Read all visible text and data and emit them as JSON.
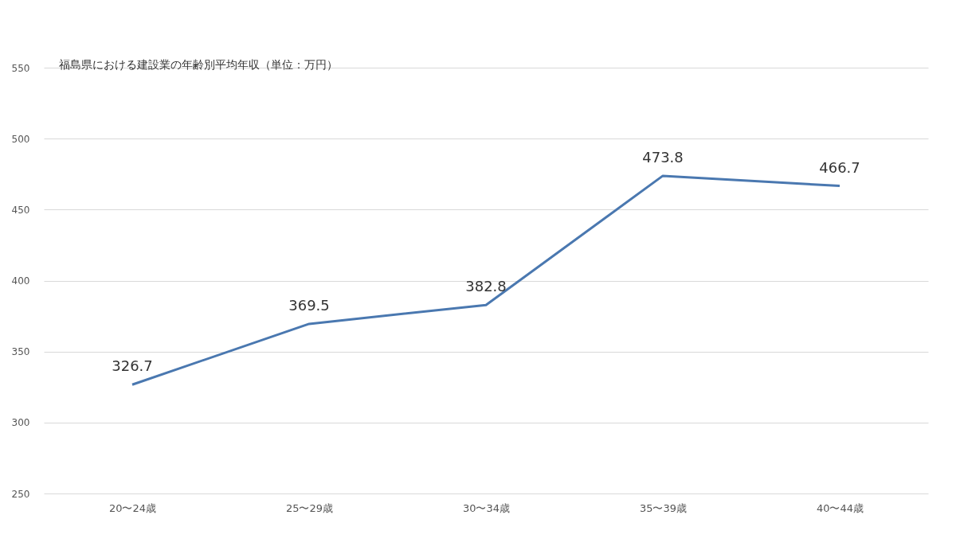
{
  "chart_data": {
    "type": "line",
    "title": "福島県における建設業の年齢別平均年収（単位：万円）",
    "categories": [
      "20〜24歳",
      "25〜29歳",
      "30〜34歳",
      "35〜39歳",
      "40〜44歳"
    ],
    "series": [
      {
        "color": "#4a78b0",
        "values": [
          326.7,
          369.5,
          382.8,
          473.8,
          466.7
        ]
      }
    ],
    "ylim": [
      250,
      550
    ],
    "yticks": [
      250,
      300,
      350,
      400,
      450,
      500,
      550
    ],
    "grid": "y",
    "data_labels": true,
    "marker": "none",
    "line_style": "solid"
  }
}
